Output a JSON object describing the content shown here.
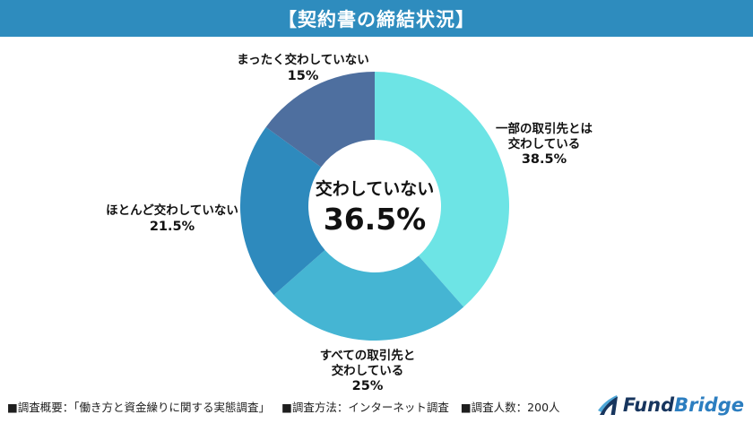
{
  "header": {
    "title": "【契約書の締結状況】",
    "bg_color": "#2E8CBE",
    "text_color": "#ffffff"
  },
  "chart_data": {
    "type": "pie",
    "variant": "donut",
    "title": "契約書の締結状況",
    "unit": "%",
    "start_angle_deg": 0,
    "direction": "clockwise",
    "outer_radius": 150,
    "inner_radius": 74,
    "segments": [
      {
        "label": "一部の取引先とは交わしている",
        "value": 38.5,
        "color": "#6DE4E5"
      },
      {
        "label": "すべての取引先と交わしている",
        "value": 25,
        "color": "#45B5D3"
      },
      {
        "label": "ほとんど交わしていない",
        "value": 21.5,
        "color": "#2E8ABD"
      },
      {
        "label": "まったく交わしていない",
        "value": 15,
        "color": "#4E6F9F"
      }
    ],
    "center_label": {
      "text": "交わしていない",
      "value": "36.5%"
    },
    "legend_position": "around-slices"
  },
  "labels": {
    "top": {
      "lines": [
        "まったく交わしていない",
        "15%"
      ]
    },
    "right": {
      "lines": [
        "一部の取引先とは",
        "交わしている",
        "38.5%"
      ]
    },
    "left": {
      "lines": [
        "ほとんど交わしていない",
        "21.5%"
      ]
    },
    "bottom": {
      "lines": [
        "すべての取引先と",
        "交わしている",
        "25%"
      ]
    }
  },
  "footer": {
    "survey_overview": "■調査概要：「働き方と資金繰りに関する実態調査」",
    "survey_method": "■調査方法：インターネット調査",
    "survey_count": "■調査人数：200人"
  },
  "logo": {
    "fund": "Fund",
    "bridge": "Bridge",
    "fund_color": "#17355E",
    "bridge_color": "#2C7EC0"
  }
}
